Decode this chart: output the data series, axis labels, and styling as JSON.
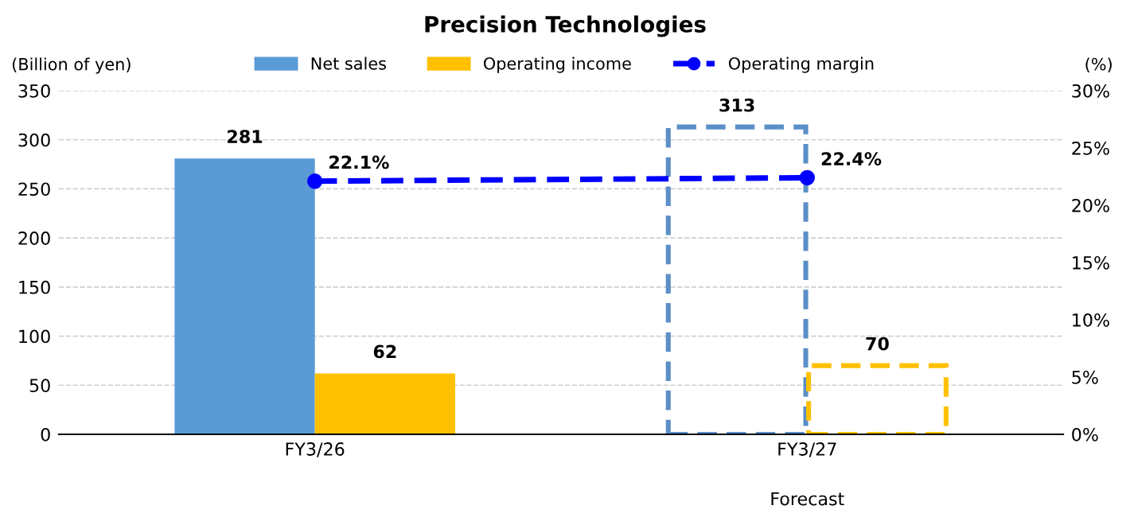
{
  "chart_data": {
    "type": "bar",
    "title": "Precision Technologies",
    "ylabel": "(Billion of yen)",
    "y2label": "(%)",
    "categories": [
      "FY3/26",
      "FY3/27"
    ],
    "series": [
      {
        "name": "Net sales",
        "color": "#5b9bd5",
        "values": [
          281,
          null
        ],
        "value_labels": [
          "281",
          null
        ]
      },
      {
        "name": "Operating income",
        "color": "#ffc000",
        "values": [
          62,
          null
        ],
        "value_labels": [
          "62",
          null
        ]
      },
      {
        "color": "#5b8fc7",
        "values": [
          null,
          313
        ],
        "line_style": "dashed",
        "value_labels": [
          null,
          "313"
        ]
      },
      {
        "color": "#ffc000",
        "values": [
          null,
          70
        ],
        "line_style": "dashed",
        "value_labels": [
          null,
          "70"
        ]
      },
      {
        "name": "Operating margin",
        "type": "line",
        "axis": "y2",
        "color": "#0000ff",
        "values": [
          22.1,
          22.4
        ],
        "line_style": "dashed",
        "marker": "circle",
        "value_labels": [
          "22.1%",
          "22.4%"
        ]
      }
    ],
    "ylim": [
      0,
      350
    ],
    "yticks": [
      0,
      50,
      100,
      150,
      200,
      250,
      300,
      350
    ],
    "y2lim": [
      0,
      30
    ],
    "y2ticks": [
      {
        "value": 0,
        "label": "0%"
      },
      {
        "value": 5,
        "label": "5%"
      },
      {
        "value": 10,
        "label": "10%"
      },
      {
        "value": 15,
        "label": "15%"
      },
      {
        "value": 20,
        "label": "20%"
      },
      {
        "value": 25,
        "label": "25%"
      },
      {
        "value": 30,
        "label": "30%"
      }
    ],
    "annotations": [
      "Forecast"
    ],
    "grid": "y",
    "legend": "top"
  }
}
